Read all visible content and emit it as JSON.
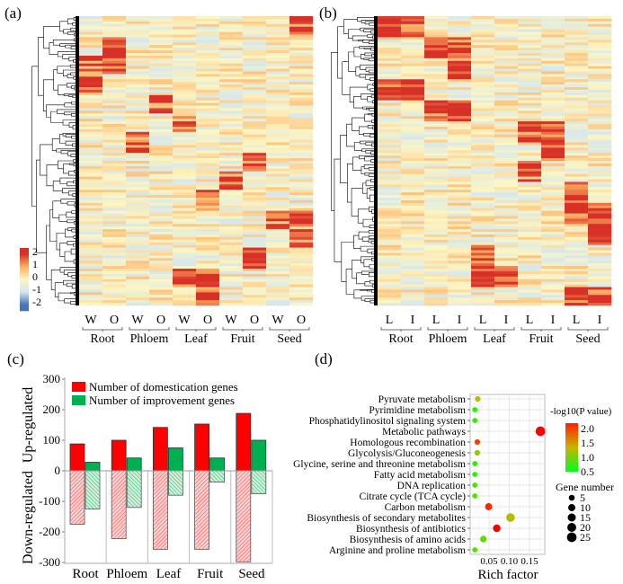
{
  "panels": {
    "a": "(a)",
    "b": "(b)",
    "c": "(c)",
    "d": "(d)"
  },
  "heatmap_a": {
    "columns": [
      "W",
      "O",
      "W",
      "O",
      "W",
      "O",
      "W",
      "O",
      "W",
      "O"
    ],
    "tissues": [
      "Root",
      "Phloem",
      "Leaf",
      "Fruit",
      "Seed"
    ]
  },
  "heatmap_b": {
    "columns": [
      "L",
      "I",
      "L",
      "I",
      "L",
      "I",
      "L",
      "I",
      "L",
      "I"
    ],
    "tissues": [
      "Root",
      "Phloem",
      "Leaf",
      "Fruit",
      "Seed"
    ]
  },
  "colorbar": {
    "ticks": [
      "2",
      "1",
      "0",
      "-1",
      "-2"
    ],
    "colors": [
      "#4575b4",
      "#d1e5f0",
      "#fdf6c3",
      "#fdae61",
      "#d73027"
    ]
  },
  "chart_data": [
    {
      "type": "bar",
      "categories": [
        "Root",
        "Phloem",
        "Leaf",
        "Fruit",
        "Seed"
      ],
      "series": [
        {
          "name": "Number of domestication genes",
          "color": "#ff0000",
          "up": [
            88,
            100,
            142,
            153,
            188
          ],
          "down": [
            -175,
            -222,
            -257,
            -257,
            -298
          ]
        },
        {
          "name": "Number of improvement genes",
          "color": "#00b050",
          "up": [
            28,
            42,
            75,
            42,
            100
          ],
          "down": [
            -125,
            -120,
            -80,
            -37,
            -75
          ]
        }
      ],
      "ylabel_up": "Up-regulated",
      "ylabel_down": "Down-regulated",
      "ylim": [
        -300,
        300
      ],
      "yticks": [
        "300",
        "200",
        "100",
        "0",
        "-100",
        "-200",
        "-300"
      ]
    },
    {
      "type": "scatter",
      "categories": [
        "Pyruvate metabolism",
        "Pyrimidine metabolism",
        "Phosphatidylinositol signaling system",
        "Metabolic pathways",
        "Homologous recombination",
        "Glycolysis/Gluconeogenesis",
        "Glycine, serine and threonine metabolism",
        "Fatty acid metabolism",
        "DNA replication",
        "Citrate cycle (TCA cycle)",
        "Carbon metabolism",
        "Biosynthesis of secondary metabolites",
        "Biosynthesis of antibiotics",
        "Biosynthesis of amino acids",
        "Arginine and proline metabolism"
      ],
      "rich_factor": [
        0.022,
        0.015,
        0.015,
        0.177,
        0.021,
        0.021,
        0.015,
        0.015,
        0.015,
        0.015,
        0.049,
        0.103,
        0.069,
        0.036,
        0.015
      ],
      "neg_log10_p": [
        1.3,
        0.6,
        0.7,
        2.1,
        1.8,
        1.1,
        0.7,
        0.7,
        0.8,
        0.8,
        1.9,
        1.2,
        2.1,
        0.9,
        0.8
      ],
      "gene_number": [
        4,
        3,
        3,
        25,
        4,
        4,
        3,
        3,
        3,
        3,
        10,
        18,
        12,
        8,
        3
      ],
      "xlabel": "Rich factor",
      "xticks": [
        "0.05",
        "0.10",
        "0.15"
      ],
      "xlim": [
        0,
        0.185
      ],
      "color_title": "-log10(P value)",
      "color_ticks": [
        "2.0",
        "1.5",
        "1.0",
        "0.5"
      ],
      "color_range": [
        0.5,
        2.1
      ],
      "color_low": "#00ff00",
      "color_high": "#ff0000",
      "size_title": "Gene number",
      "size_ticks": [
        "5",
        "10",
        "15",
        "20",
        "25"
      ],
      "grid": true
    }
  ]
}
